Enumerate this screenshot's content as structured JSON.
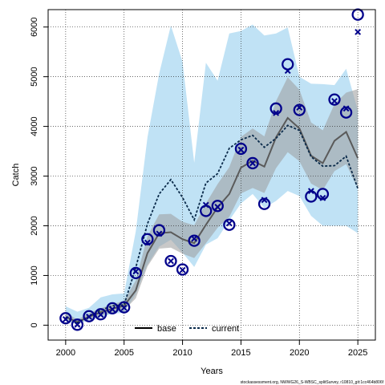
{
  "chart_data": {
    "type": "line",
    "xlabel": "Years",
    "ylabel": "Catch",
    "xlim": [
      1998.5,
      2026.5
    ],
    "ylim": [
      -300,
      6350
    ],
    "x_ticks": [
      2000,
      2005,
      2010,
      2015,
      2020,
      2025
    ],
    "y_ticks": [
      0,
      1000,
      2000,
      3000,
      4000,
      5000,
      6000
    ],
    "grid": true,
    "legend_position": "bottom-center",
    "footer": "stockassessment.org, NWWG26_S-WBSC_splitSurvey, r10810_git:1cc464b806f",
    "colors": {
      "base_line": "#5a5a5a",
      "base_band": "#9a9a9a",
      "current_line": "#0a2a4a",
      "current_band": "#8ccbec",
      "observed": "#00008b"
    },
    "years": [
      2000,
      2001,
      2002,
      2003,
      2004,
      2005,
      2006,
      2007,
      2008,
      2009,
      2010,
      2011,
      2012,
      2013,
      2014,
      2015,
      2016,
      2017,
      2018,
      2019,
      2020,
      2021,
      2022,
      2023,
      2024,
      2025
    ],
    "observed_catch": [
      140,
      10,
      180,
      220,
      340,
      360,
      1050,
      1730,
      1910,
      1290,
      1120,
      1700,
      2300,
      2400,
      2020,
      3550,
      3260,
      2440,
      4360,
      5250,
      4330,
      2590,
      2640,
      4540,
      4280,
      6250
    ],
    "series": [
      {
        "name": "base",
        "style": "solid",
        "values": [
          170,
          60,
          170,
          260,
          330,
          390,
          700,
          1450,
          1850,
          1870,
          1730,
          1650,
          2020,
          2370,
          2640,
          3170,
          3310,
          3190,
          3780,
          4170,
          3960,
          3410,
          3260,
          3710,
          3890,
          3360
        ],
        "lower": [
          110,
          30,
          120,
          190,
          250,
          300,
          540,
          1180,
          1540,
          1560,
          1440,
          1350,
          1650,
          1960,
          2180,
          2650,
          2760,
          2660,
          3160,
          3480,
          3300,
          2850,
          2720,
          3100,
          3240,
          2750
        ],
        "upper": [
          260,
          110,
          240,
          340,
          420,
          490,
          900,
          1790,
          2230,
          2240,
          2080,
          2010,
          2450,
          2840,
          3180,
          3790,
          3960,
          3800,
          4510,
          4990,
          4740,
          4080,
          3920,
          4450,
          4680,
          4750
        ],
        "predicted": [
          120,
          10,
          170,
          210,
          320,
          350,
          1080,
          1660,
          1840,
          1290,
          1110,
          1740,
          2420,
          2380,
          2050,
          3530,
          3260,
          2520,
          4270,
          5120,
          4380,
          2700,
          2560,
          4510,
          4360,
          5900
        ]
      },
      {
        "name": "current",
        "style": "dashed",
        "values": [
          160,
          50,
          180,
          300,
          390,
          410,
          1160,
          2040,
          2640,
          2930,
          2570,
          2120,
          2860,
          3050,
          3560,
          3730,
          3820,
          3580,
          3760,
          4020,
          3920,
          3390,
          3200,
          3210,
          3400,
          2750
        ],
        "lower": [
          80,
          20,
          100,
          160,
          230,
          250,
          620,
          1220,
          1580,
          1720,
          1460,
          1170,
          1620,
          1750,
          2110,
          2450,
          2640,
          2360,
          2500,
          2700,
          2600,
          2200,
          2000,
          2000,
          2000,
          1850
        ],
        "upper": [
          380,
          270,
          350,
          560,
          620,
          640,
          1890,
          3780,
          5060,
          6030,
          5300,
          3270,
          5280,
          4920,
          5870,
          5920,
          6050,
          5830,
          5870,
          5990,
          5000,
          4860,
          4850,
          4830,
          5160,
          4320
        ]
      }
    ]
  }
}
